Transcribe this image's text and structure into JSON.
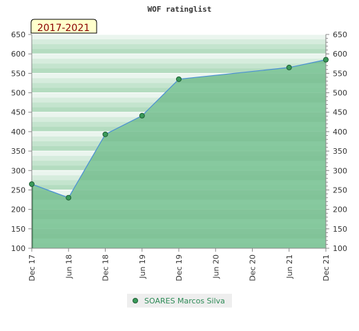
{
  "chart_data": {
    "type": "area",
    "title": "WOF ratinglist",
    "period_badge": "2017-2021",
    "x_ticks": [
      "Dec 17",
      "Jun 18",
      "Dec 18",
      "Jun 19",
      "Dec 19",
      "Jun 20",
      "Dec 20",
      "Jun 21",
      "Dec 21"
    ],
    "ylim": [
      100,
      650
    ],
    "y_ticks": [
      100,
      150,
      200,
      250,
      300,
      350,
      400,
      450,
      500,
      550,
      600,
      650
    ],
    "series": [
      {
        "name": "SOARES Marcos Silva",
        "points": [
          {
            "x": "Dec 17",
            "y": 265
          },
          {
            "x": "Jun 18",
            "y": 230
          },
          {
            "x": "Dec 18",
            "y": 393
          },
          {
            "x": "Jun 19",
            "y": 441
          },
          {
            "x": "Dec 19",
            "y": 535
          },
          {
            "x": "Jun 21",
            "y": 565
          },
          {
            "x": "Dec 21",
            "y": 585
          }
        ]
      }
    ],
    "legend_position": "bottom-center",
    "colors": {
      "area": "#7cc496",
      "line": "#4a8fd4",
      "marker": "#3a9a5a",
      "badge_bg": "#ffffcc",
      "badge_text": "#8b0000"
    }
  }
}
